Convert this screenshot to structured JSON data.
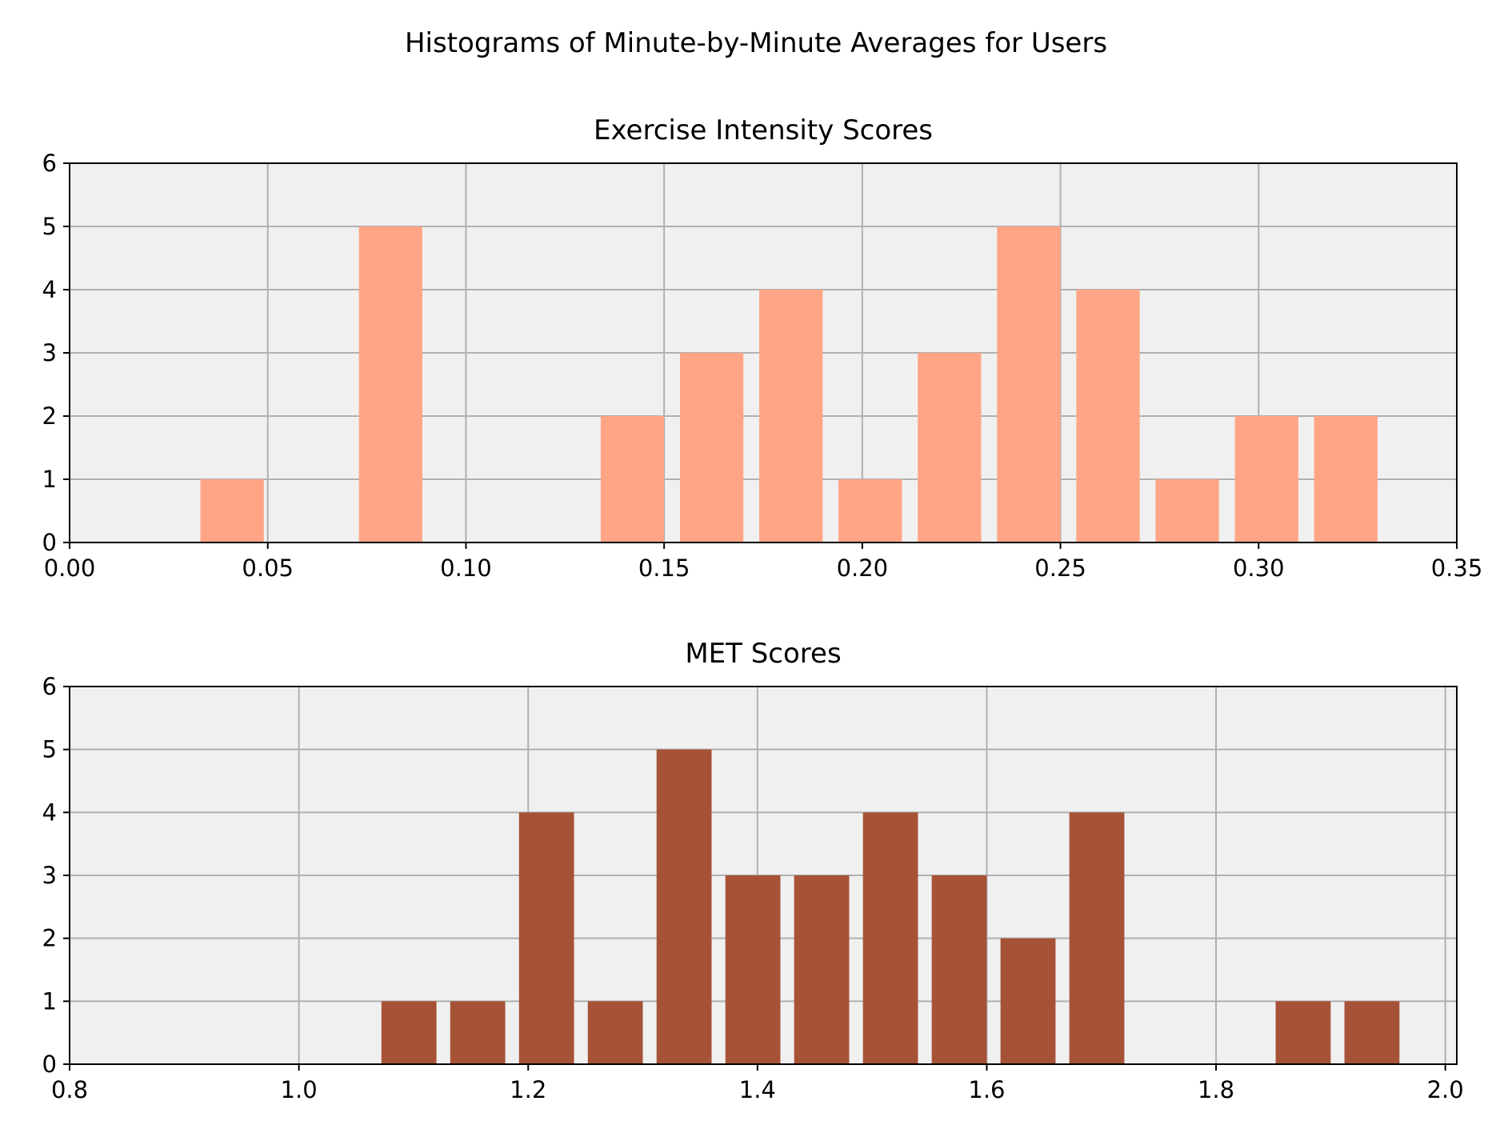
{
  "figure": {
    "suptitle": "Histograms of Minute-by-Minute Averages for Users"
  },
  "chart_data": [
    {
      "type": "bar",
      "title": "Exercise Intensity Scores",
      "xlabel": "",
      "ylabel": "",
      "color": "#FFA586",
      "background": "#F0F0F0",
      "grid": true,
      "xlim": [
        0.0,
        0.35
      ],
      "ylim": [
        0,
        6
      ],
      "xticks": [
        0.0,
        0.05,
        0.1,
        0.15,
        0.2,
        0.25,
        0.3,
        0.35
      ],
      "xtick_labels": [
        "0.00",
        "0.05",
        "0.10",
        "0.15",
        "0.20",
        "0.25",
        "0.30",
        "0.35"
      ],
      "yticks": [
        0,
        1,
        2,
        3,
        4,
        5,
        6
      ],
      "ytick_labels": [
        "0",
        "1",
        "2",
        "3",
        "4",
        "5",
        "6"
      ],
      "bins": [
        [
          0.033,
          0.049,
          1
        ],
        [
          0.073,
          0.089,
          5
        ],
        [
          0.134,
          0.15,
          2
        ],
        [
          0.154,
          0.17,
          3
        ],
        [
          0.174,
          0.19,
          4
        ],
        [
          0.194,
          0.21,
          1
        ],
        [
          0.214,
          0.23,
          3
        ],
        [
          0.234,
          0.25,
          5
        ],
        [
          0.254,
          0.27,
          4
        ],
        [
          0.274,
          0.29,
          1
        ],
        [
          0.294,
          0.31,
          2
        ],
        [
          0.314,
          0.33,
          2
        ]
      ]
    },
    {
      "type": "bar",
      "title": "MET Scores",
      "xlabel": "",
      "ylabel": "",
      "color": "#A65236",
      "background": "#F0F0F0",
      "grid": true,
      "xlim": [
        0.8,
        2.01
      ],
      "ylim": [
        0,
        6
      ],
      "xticks": [
        0.8,
        1.0,
        1.2,
        1.4,
        1.6,
        1.8,
        2.0
      ],
      "xtick_labels": [
        "0.8",
        "1.0",
        "1.2",
        "1.4",
        "1.6",
        "1.8",
        "2.0"
      ],
      "yticks": [
        0,
        1,
        2,
        3,
        4,
        5,
        6
      ],
      "ytick_labels": [
        "0",
        "1",
        "2",
        "3",
        "4",
        "5",
        "6"
      ],
      "bins": [
        [
          1.072,
          1.12,
          1
        ],
        [
          1.132,
          1.18,
          1
        ],
        [
          1.192,
          1.24,
          4
        ],
        [
          1.252,
          1.3,
          1
        ],
        [
          1.312,
          1.36,
          5
        ],
        [
          1.372,
          1.42,
          3
        ],
        [
          1.432,
          1.48,
          3
        ],
        [
          1.492,
          1.54,
          4
        ],
        [
          1.552,
          1.6,
          3
        ],
        [
          1.612,
          1.66,
          2
        ],
        [
          1.672,
          1.72,
          4
        ],
        [
          1.852,
          1.9,
          1
        ],
        [
          1.912,
          1.96,
          1
        ]
      ]
    }
  ]
}
